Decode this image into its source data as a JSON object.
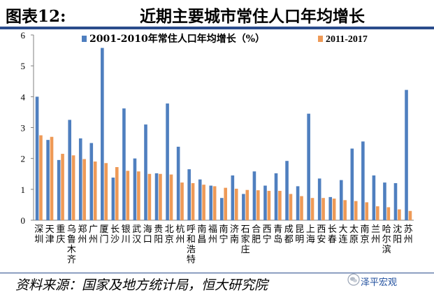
{
  "figure": {
    "label": "图表12:",
    "title": "近期主要城市常住人口年均增长",
    "source": "资料来源：国家及地方统计局，恒大研究院",
    "watermark": "泽平宏观",
    "watermark_icon": "wechat-icon"
  },
  "colors": {
    "series1": "#4f7fbf",
    "series2": "#ee9a57",
    "axis": "#808080"
  },
  "chart_data": {
    "type": "bar",
    "ylim": [
      0,
      6
    ],
    "yticks": [
      0,
      1,
      2,
      3,
      4,
      5,
      6
    ],
    "legend_position": "top",
    "categories": [
      "深圳",
      "天津",
      "重庆",
      "乌鲁木齐",
      "郑州",
      "广州",
      "厦门",
      "长沙",
      "银川",
      "武汉",
      "海口",
      "贵阳",
      "北京",
      "杭州",
      "呼和浩特",
      "南昌",
      "福州",
      "南宁",
      "济南",
      "石家庄",
      "合肥",
      "西宁",
      "青岛",
      "成都",
      "昆明",
      "上海",
      "西安",
      "长春",
      "大连",
      "太原",
      "南京",
      "兰州",
      "哈尔滨",
      "沈阳",
      "苏州"
    ],
    "series": [
      {
        "name": "2001-2010年常住人口年均增长（%）",
        "values": [
          4.0,
          2.6,
          1.95,
          3.25,
          2.65,
          2.5,
          5.58,
          1.38,
          3.62,
          2.0,
          3.1,
          1.52,
          3.78,
          2.38,
          1.65,
          1.32,
          1.12,
          0.72,
          1.45,
          0.85,
          1.58,
          1.12,
          1.52,
          1.92,
          1.1,
          3.45,
          1.35,
          0.75,
          1.3,
          2.32,
          2.55,
          1.45,
          1.22,
          1.2,
          4.22
        ]
      },
      {
        "name": "2011-2017",
        "values": [
          2.75,
          2.7,
          2.15,
          2.1,
          1.98,
          1.9,
          1.85,
          1.72,
          1.6,
          1.58,
          1.5,
          1.5,
          1.48,
          1.22,
          1.2,
          1.15,
          1.1,
          1.05,
          1.02,
          0.98,
          0.97,
          0.95,
          0.95,
          0.85,
          0.78,
          0.72,
          0.72,
          0.7,
          0.65,
          0.62,
          0.58,
          0.45,
          0.42,
          0.35,
          0.3
        ]
      }
    ]
  }
}
